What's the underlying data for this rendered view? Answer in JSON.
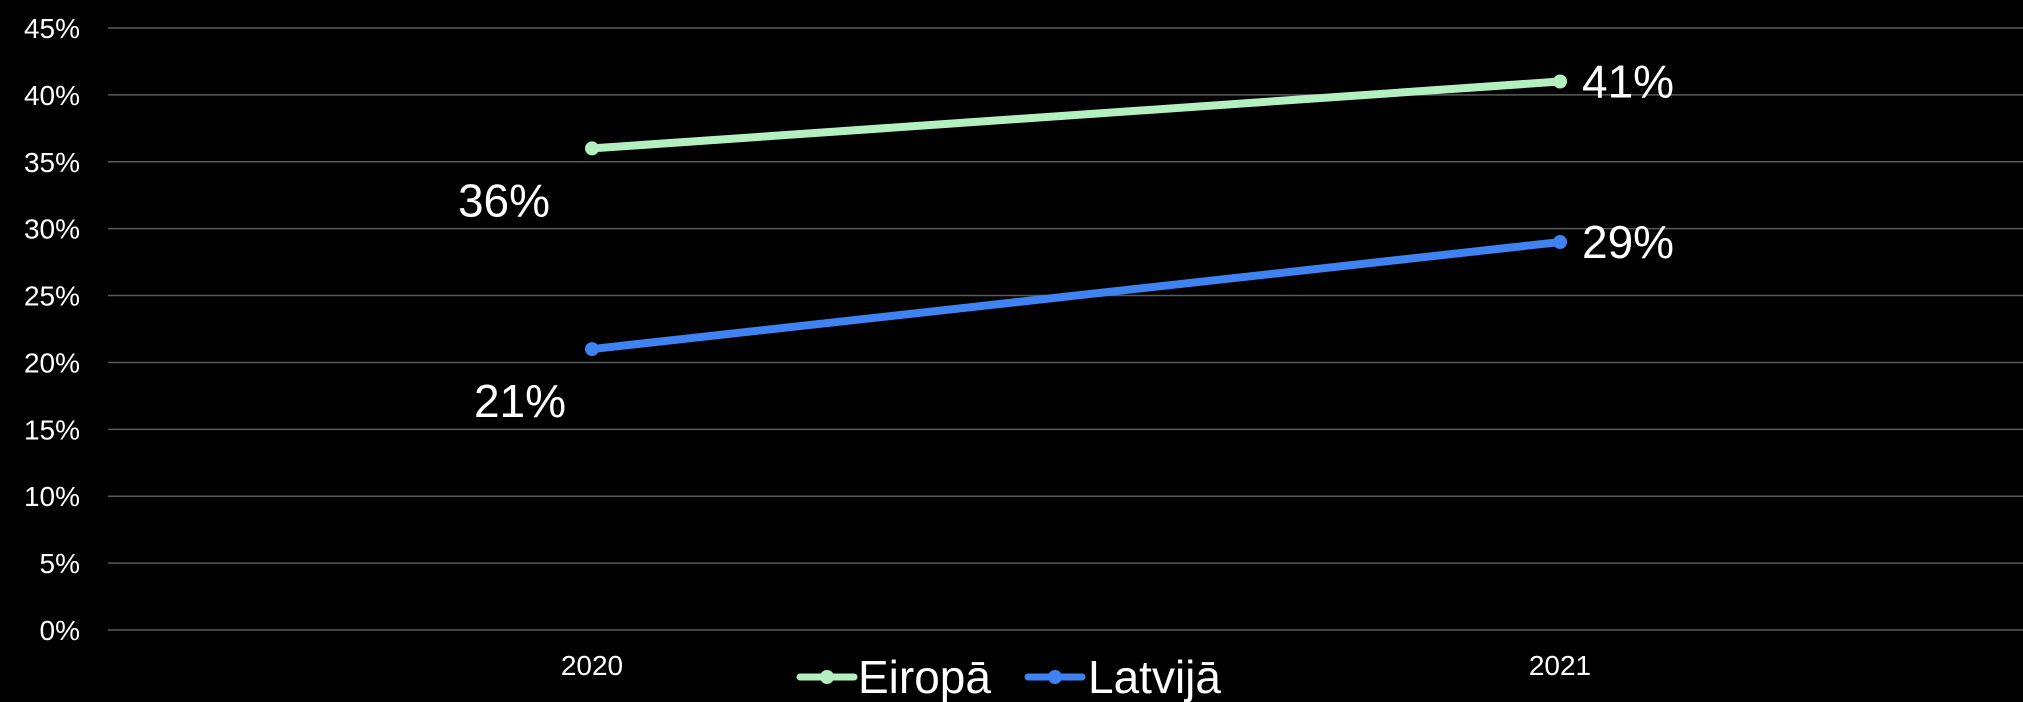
{
  "chart_data": {
    "type": "line",
    "title": "",
    "xlabel": "",
    "ylabel": "",
    "categories": [
      "2020",
      "2021"
    ],
    "ylim": [
      0,
      45
    ],
    "y_ticks": [
      "0%",
      "5%",
      "10%",
      "15%",
      "20%",
      "25%",
      "30%",
      "35%",
      "40%",
      "45%"
    ],
    "y_tick_values": [
      0,
      5,
      10,
      15,
      20,
      25,
      30,
      35,
      40,
      45
    ],
    "grid": true,
    "legend_position": "bottom",
    "series": [
      {
        "name": "Eiropā",
        "values": [
          36,
          41
        ],
        "labels": [
          "36%",
          "41%"
        ],
        "color": "#b3f0bf"
      },
      {
        "name": "Latvijā",
        "values": [
          21,
          29
        ],
        "labels": [
          "21%",
          "29%"
        ],
        "color": "#3f82f2"
      }
    ]
  }
}
